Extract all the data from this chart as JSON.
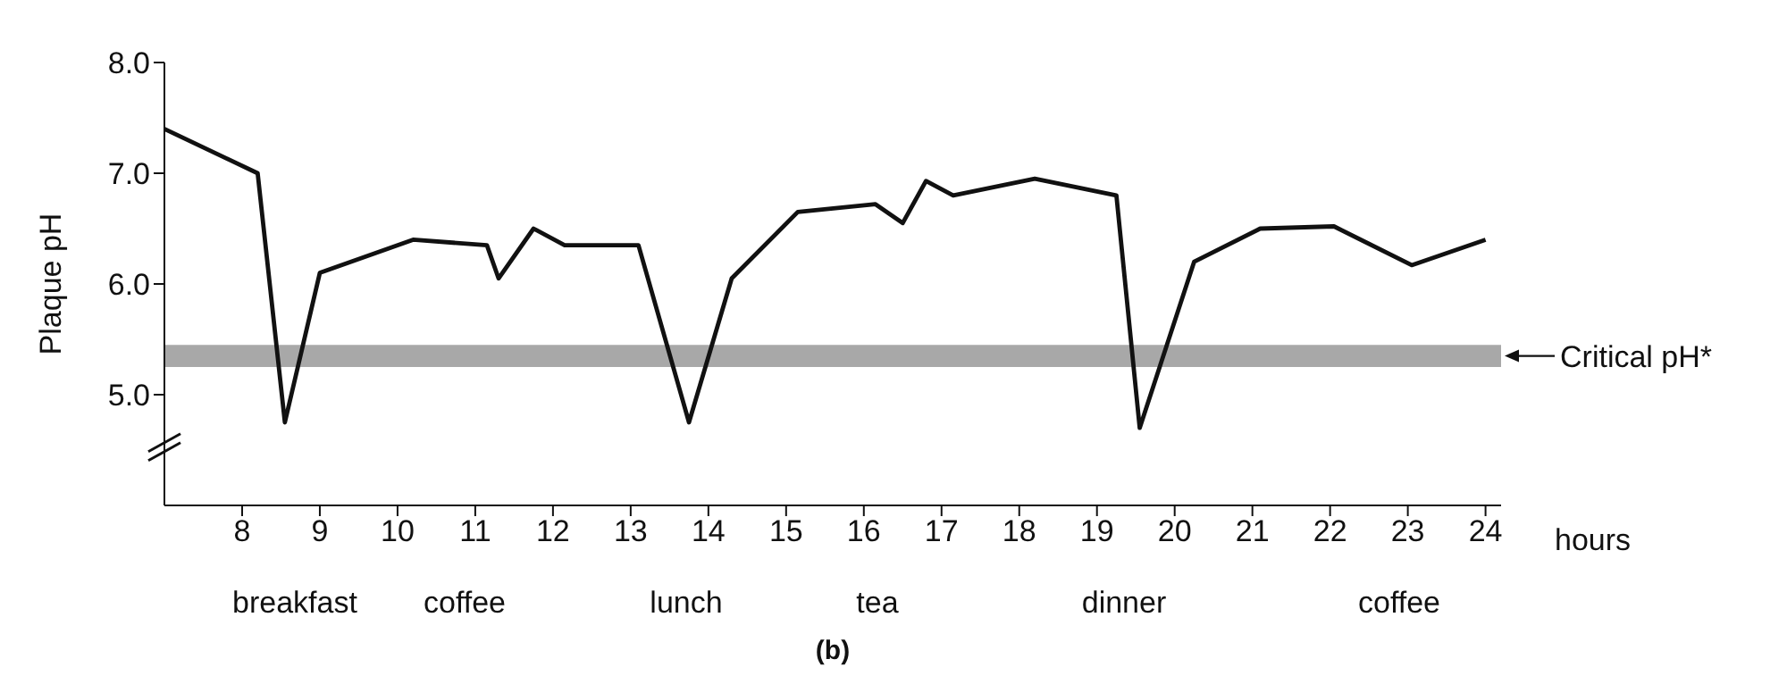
{
  "chart_data": {
    "type": "line",
    "xlabel": "hours",
    "ylabel": "Plaque pH",
    "xlim": [
      7,
      24.2
    ],
    "xticks": [
      8,
      9,
      10,
      11,
      12,
      13,
      14,
      15,
      16,
      17,
      18,
      19,
      20,
      21,
      22,
      23,
      24
    ],
    "ylim": [
      4,
      8
    ],
    "yticks": [
      {
        "value": 5,
        "label": "5.0"
      },
      {
        "value": 6,
        "label": "6.0"
      },
      {
        "value": 7,
        "label": "7.0"
      },
      {
        "value": 8,
        "label": "8.0"
      }
    ],
    "grid": false,
    "legend": false,
    "marker": "none",
    "line_style": "solid",
    "series": [
      {
        "color": "#111111",
        "x": [
          7,
          8.2,
          8.55,
          9,
          10.2,
          11.15,
          11.3,
          11.75,
          12.15,
          13.1,
          13.75,
          14.3,
          15.15,
          16.15,
          16.5,
          16.8,
          17.15,
          18.2,
          19.25,
          19.55,
          20.25,
          21.1,
          22.05,
          23.05,
          24
        ],
        "values": [
          7.4,
          7.0,
          4.75,
          6.1,
          6.4,
          6.35,
          6.05,
          6.5,
          6.35,
          6.35,
          4.75,
          6.05,
          6.65,
          6.72,
          6.55,
          6.93,
          6.8,
          6.95,
          6.8,
          4.7,
          6.2,
          6.5,
          6.52,
          6.17,
          6.4
        ]
      }
    ],
    "bands": [
      {
        "axis": "y",
        "from": 5.25,
        "to": 5.45,
        "label": "Critical pH*",
        "color": "#a8a8a8"
      }
    ],
    "annotations": [
      "breakfast",
      "coffee",
      "lunch",
      "tea",
      "dinner",
      "coffee",
      "(b)"
    ]
  }
}
